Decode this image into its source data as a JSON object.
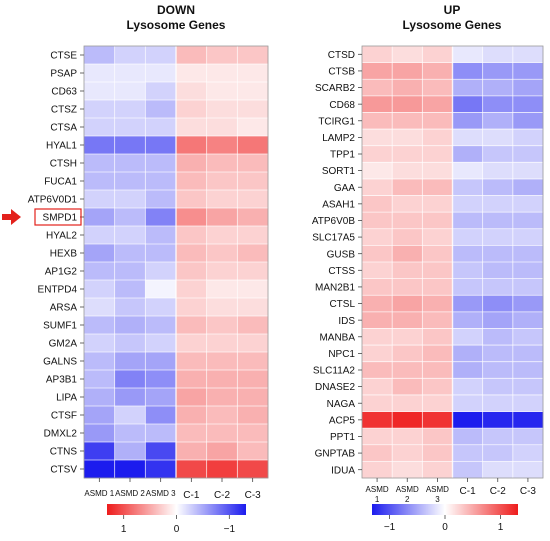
{
  "chart_data": [
    {
      "type": "heatmap",
      "title": "DOWN",
      "subtitle": "Lysosome Genes",
      "columns": [
        "ASMD 1",
        "ASMD 2",
        "ASMD 3",
        "C-1",
        "C-2",
        "C-3"
      ],
      "rows": [
        "CTSE",
        "PSAP",
        "CD63",
        "CTSZ",
        "CTSA",
        "HYAL1",
        "CTSH",
        "FUCA1",
        "ATP6V0D1",
        "SMPD1",
        "HYAL2",
        "HEXB",
        "AP1G2",
        "ENTPD4",
        "ARSA",
        "SUMF1",
        "GM2A",
        "GALNS",
        "AP3B1",
        "LIPA",
        "CTSF",
        "DMXL2",
        "CTNS",
        "CTSV"
      ],
      "highlighted_row": "SMPD1",
      "values": [
        [
          -0.3,
          -0.2,
          -0.2,
          0.3,
          0.25,
          0.25
        ],
        [
          -0.1,
          -0.1,
          -0.1,
          0.1,
          0.1,
          0.1
        ],
        [
          -0.1,
          -0.1,
          -0.2,
          0.15,
          0.1,
          0.1
        ],
        [
          -0.2,
          -0.2,
          -0.3,
          0.2,
          0.15,
          0.15
        ],
        [
          -0.2,
          -0.2,
          -0.2,
          0.15,
          0.15,
          0.1
        ],
        [
          -0.6,
          -0.6,
          -0.6,
          0.6,
          0.55,
          0.6
        ],
        [
          -0.3,
          -0.3,
          -0.3,
          0.35,
          0.3,
          0.3
        ],
        [
          -0.3,
          -0.3,
          -0.3,
          0.3,
          0.25,
          0.25
        ],
        [
          -0.2,
          -0.2,
          -0.3,
          0.25,
          0.2,
          0.2
        ],
        [
          -0.4,
          -0.3,
          -0.55,
          0.5,
          0.4,
          0.35
        ],
        [
          -0.2,
          -0.2,
          -0.3,
          0.25,
          0.2,
          0.2
        ],
        [
          -0.4,
          -0.3,
          -0.3,
          0.3,
          0.25,
          0.3
        ],
        [
          -0.3,
          -0.3,
          -0.2,
          0.25,
          0.2,
          0.2
        ],
        [
          -0.2,
          -0.3,
          -0.05,
          0.2,
          0.1,
          0.1
        ],
        [
          -0.15,
          -0.25,
          -0.2,
          0.2,
          0.15,
          0.15
        ],
        [
          -0.3,
          -0.35,
          -0.3,
          0.3,
          0.25,
          0.3
        ],
        [
          -0.2,
          -0.25,
          -0.2,
          0.2,
          0.2,
          0.2
        ],
        [
          -0.3,
          -0.4,
          -0.4,
          0.3,
          0.3,
          0.3
        ],
        [
          -0.3,
          -0.55,
          -0.5,
          0.35,
          0.35,
          0.35
        ],
        [
          -0.35,
          -0.45,
          -0.4,
          0.4,
          0.35,
          0.35
        ],
        [
          -0.4,
          -0.2,
          -0.5,
          0.35,
          0.3,
          0.35
        ],
        [
          -0.45,
          -0.3,
          -0.3,
          0.3,
          0.3,
          0.3
        ],
        [
          -0.85,
          -0.35,
          -0.8,
          0.35,
          0.4,
          0.3
        ],
        [
          -1.0,
          -1.0,
          -0.9,
          0.8,
          0.85,
          0.8
        ]
      ],
      "colorbar": {
        "ticks": [
          "1",
          "0",
          "−1"
        ],
        "direction": "positive-to-negative"
      },
      "colors": {
        "positive": "#ee1c1c",
        "neutral": "#ffffff",
        "negative": "#1c1cee"
      },
      "annotation": "arrow-icon pointing to SMPD1"
    },
    {
      "type": "heatmap",
      "title": "UP",
      "subtitle": "Lysosome Genes",
      "columns": [
        "ASMD 1",
        "ASMD 2",
        "ASMD 3",
        "C-1",
        "C-2",
        "C-3"
      ],
      "rows": [
        "CTSD",
        "CTSB",
        "SCARB2",
        "CD68",
        "TCIRG1",
        "LAMP2",
        "TPP1",
        "SORT1",
        "GAA",
        "ASAH1",
        "ATP6V0B",
        "SLC17A5",
        "GUSB",
        "CTSS",
        "MAN2B1",
        "CTSL",
        "IDS",
        "MANBA",
        "NPC1",
        "SLC11A2",
        "DNASE2",
        "NAGA",
        "ACP5",
        "PPT1",
        "GNPTAB",
        "IDUA"
      ],
      "values": [
        [
          0.2,
          0.15,
          0.2,
          -0.1,
          -0.15,
          -0.15
        ],
        [
          0.4,
          0.4,
          0.35,
          -0.5,
          -0.45,
          -0.45
        ],
        [
          0.3,
          0.35,
          0.3,
          -0.35,
          -0.35,
          -0.4
        ],
        [
          0.45,
          0.45,
          0.4,
          -0.6,
          -0.5,
          -0.5
        ],
        [
          0.3,
          0.3,
          0.3,
          -0.45,
          -0.35,
          -0.45
        ],
        [
          0.15,
          0.15,
          0.2,
          -0.15,
          -0.15,
          -0.2
        ],
        [
          0.2,
          0.2,
          0.2,
          -0.35,
          -0.25,
          -0.25
        ],
        [
          0.1,
          0.15,
          0.15,
          -0.1,
          -0.15,
          -0.15
        ],
        [
          0.2,
          0.3,
          0.3,
          -0.25,
          -0.3,
          -0.35
        ],
        [
          0.25,
          0.2,
          0.2,
          -0.2,
          -0.2,
          -0.2
        ],
        [
          0.25,
          0.25,
          0.25,
          -0.3,
          -0.3,
          -0.3
        ],
        [
          0.2,
          0.25,
          0.2,
          -0.2,
          -0.2,
          -0.2
        ],
        [
          0.25,
          0.35,
          0.25,
          -0.3,
          -0.3,
          -0.3
        ],
        [
          0.2,
          0.25,
          0.25,
          -0.25,
          -0.3,
          -0.3
        ],
        [
          0.25,
          0.25,
          0.25,
          -0.25,
          -0.25,
          -0.25
        ],
        [
          0.35,
          0.4,
          0.35,
          -0.45,
          -0.5,
          -0.45
        ],
        [
          0.35,
          0.35,
          0.3,
          -0.35,
          -0.4,
          -0.35
        ],
        [
          0.2,
          0.2,
          0.25,
          -0.2,
          -0.3,
          -0.25
        ],
        [
          0.2,
          0.25,
          0.3,
          -0.35,
          -0.3,
          -0.3
        ],
        [
          0.3,
          0.3,
          0.3,
          -0.35,
          -0.3,
          -0.3
        ],
        [
          0.2,
          0.3,
          0.25,
          -0.2,
          -0.25,
          -0.25
        ],
        [
          0.2,
          0.2,
          0.2,
          -0.2,
          -0.2,
          -0.2
        ],
        [
          0.9,
          0.95,
          0.9,
          -1.0,
          -0.95,
          -0.95
        ],
        [
          0.2,
          0.2,
          0.25,
          -0.3,
          -0.25,
          -0.25
        ],
        [
          0.25,
          0.2,
          0.25,
          -0.25,
          -0.25,
          -0.2
        ],
        [
          0.2,
          0.15,
          0.2,
          -0.25,
          -0.15,
          -0.15
        ]
      ],
      "colorbar": {
        "ticks": [
          "−1",
          "0",
          "1"
        ],
        "direction": "negative-to-positive"
      },
      "colors": {
        "positive": "#ee1c1c",
        "neutral": "#ffffff",
        "negative": "#1c1cee"
      }
    }
  ]
}
